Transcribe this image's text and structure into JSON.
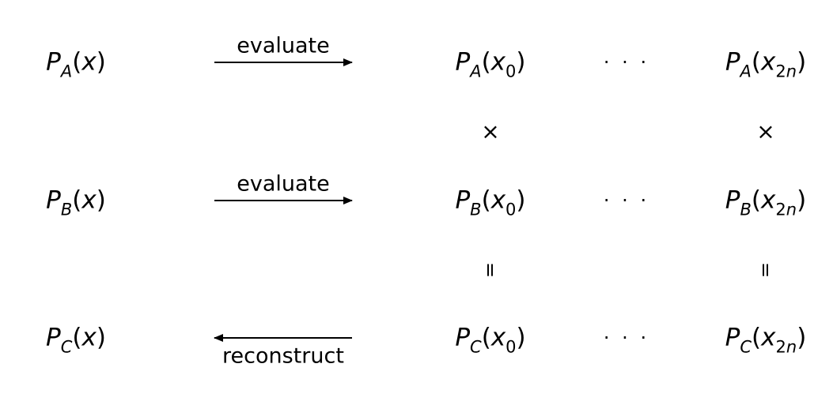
{
  "arrows": {
    "top_label": "evaluate",
    "middle_label": "evaluate",
    "bottom_label": "reconstruct"
  },
  "symbols": {
    "dots": "· · ·",
    "times": "×",
    "equals": "="
  },
  "rows": [
    {
      "letter": "A"
    },
    {
      "letter": "B"
    },
    {
      "letter": "C"
    }
  ],
  "math": {
    "P": "P",
    "x": "x",
    "x0_sub": "0",
    "x2n_sub_num": "2",
    "x2n_sub_var": "n"
  }
}
